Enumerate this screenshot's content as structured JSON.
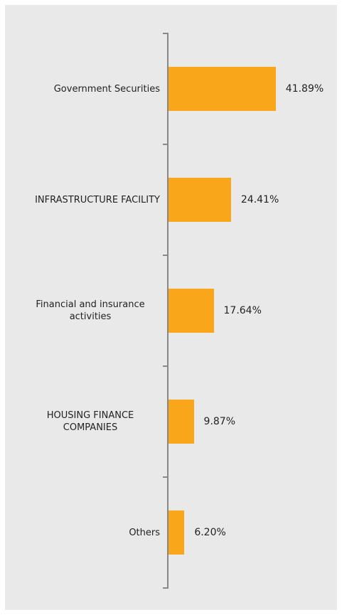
{
  "chart_data": {
    "type": "bar",
    "orientation": "horizontal",
    "categories": [
      "Government Securities",
      "INFRASTRUCTURE FACILITY",
      "Financial and insurance activities",
      "HOUSING FINANCE COMPANIES",
      "Others"
    ],
    "values": [
      41.89,
      24.41,
      17.64,
      9.87,
      6.2
    ],
    "value_labels": [
      "41.89%",
      "24.41%",
      "17.64%",
      "9.87%",
      "6.20%"
    ],
    "color": "#f9a61b"
  }
}
